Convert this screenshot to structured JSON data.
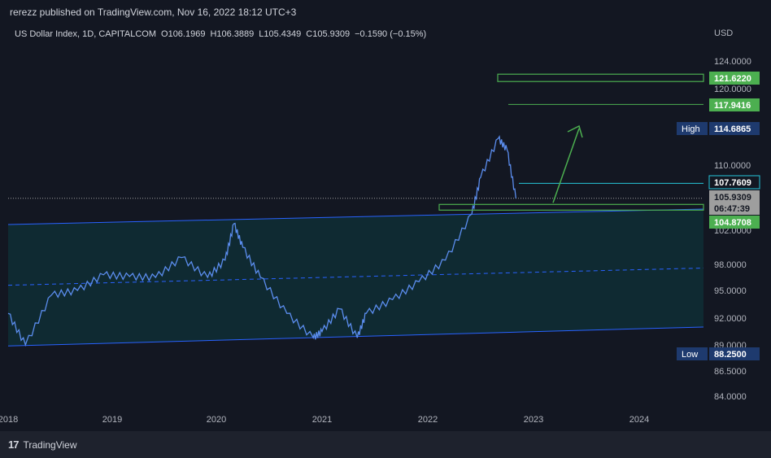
{
  "publisher": "rerezz published on TradingView.com, Nov 16, 2022 18:12 UTC+3",
  "footer": {
    "brand": "TradingView",
    "logo_text": "17"
  },
  "chart_data": {
    "type": "line",
    "title": "US Dollar Index, 1D, CAPITALCOM",
    "ohlc": {
      "open_label": "O106.1969",
      "high_label": "H106.3889",
      "low_label": "L105.4349",
      "close_label": "C105.9309",
      "change_label": "−0.1590 (−0.15%)"
    },
    "currency": "USD",
    "y_axis_ticks": [
      "124.0000",
      "120.0000",
      "110.0000",
      "102.0000",
      "98.0000",
      "95.0000",
      "92.0000",
      "89.0000",
      "86.5000",
      "84.0000"
    ],
    "x_axis_ticks": [
      "2018",
      "2019",
      "2020",
      "2021",
      "2022",
      "2023",
      "2024"
    ],
    "series": [
      {
        "x": [
          "2018-01",
          "2018-03",
          "2018-06",
          "2018-09",
          "2018-12",
          "2019-03",
          "2019-06",
          "2019-09",
          "2019-12",
          "2020-02",
          "2020-03",
          "2020-04",
          "2020-06",
          "2020-09",
          "2020-12",
          "2021-01",
          "2021-03",
          "2021-05",
          "2021-06",
          "2021-09",
          "2021-12",
          "2022-03",
          "2022-06",
          "2022-07",
          "2022-09",
          "2022-10",
          "2022-11"
        ],
        "values": [
          92.5,
          89.0,
          94.5,
          95.0,
          96.8,
          96.6,
          96.5,
          98.8,
          96.5,
          98.5,
          102.8,
          100.0,
          96.5,
          92.5,
          89.8,
          90.5,
          93.0,
          89.8,
          92.5,
          94.0,
          96.0,
          98.5,
          104.0,
          108.5,
          113.5,
          112.0,
          105.93
        ]
      }
    ],
    "levels": [
      {
        "label": "121.6220",
        "value": 121.622,
        "color": "#4caf50"
      },
      {
        "label": "117.9416",
        "value": 117.9416,
        "color": "#4caf50"
      },
      {
        "label": "114.6865",
        "value": 114.6865,
        "tag": "High",
        "color": "#1e3a6e"
      },
      {
        "label": "107.7609",
        "value": 107.7609,
        "color": "#26c6da"
      },
      {
        "label": "105.9309",
        "value": 105.9309,
        "color": "#9e9e9e"
      },
      {
        "label": "06:47:39",
        "value": 105.0,
        "color": "#9e9e9e"
      },
      {
        "label": "104.8708",
        "value": 104.8708,
        "color": "#4caf50"
      },
      {
        "label": "88.2500",
        "value": 88.25,
        "tag": "Low",
        "color": "#1e3a6e"
      }
    ],
    "channel": {
      "upper": [
        102.7,
        104.6
      ],
      "lower": [
        88.9,
        91.0
      ]
    },
    "colors": {
      "price": "#5b8dee",
      "channel": "#2962ff",
      "fill": "#0d3b40",
      "box": "#4caf50",
      "arrow": "#4caf50",
      "current": "#26c6da"
    }
  }
}
